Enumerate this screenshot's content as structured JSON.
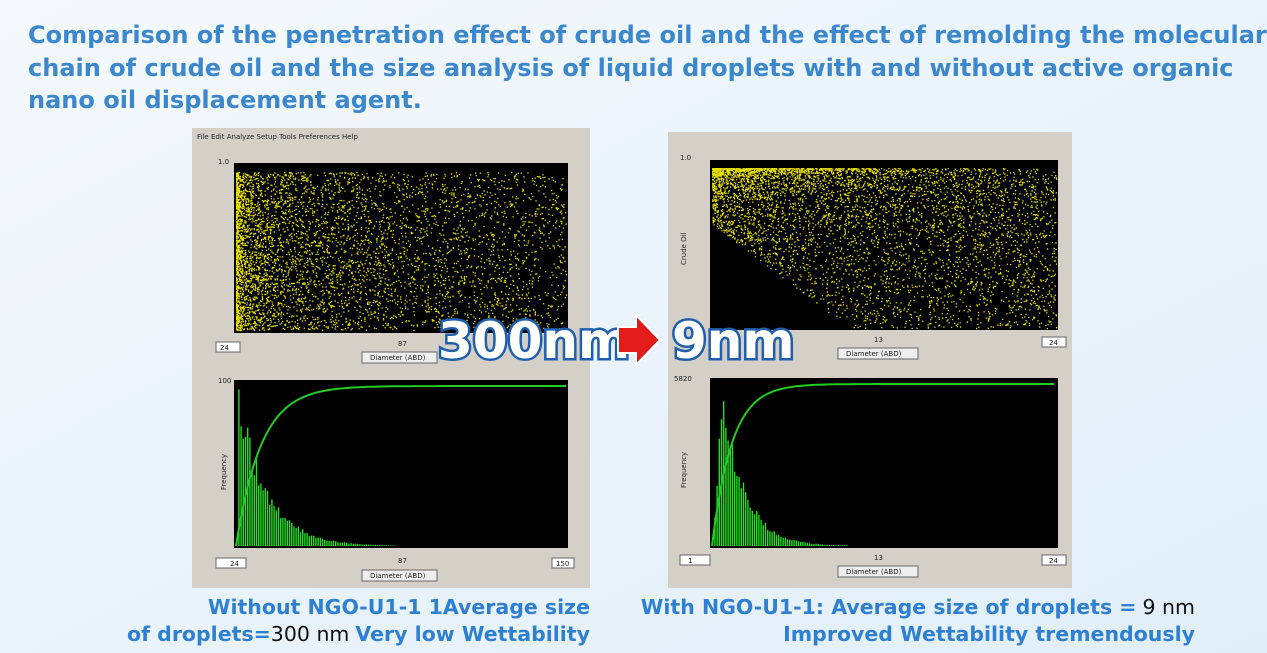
{
  "title": {
    "lines": [
      "Comparison of the penetration effect of crude oil and the effect of remolding the molecular",
      "chain of crude oil and the size analysis of liquid droplets with and without active organic",
      "nano oil displacement agent."
    ]
  },
  "left_panel": {
    "menu": "File  Edit  Analyze  Setup  Tools  Preferences  Help",
    "top_plot": {
      "y_max": "1.0",
      "x_min": "24",
      "x_mid": "87",
      "x_label": "Diameter (ABD)"
    },
    "bottom_plot": {
      "y_max": "100",
      "y_label": "Frequency",
      "x_min": "24",
      "x_mid": "87",
      "x_max": "150",
      "x_label": "Diameter (ABD)"
    }
  },
  "right_panel": {
    "top_plot": {
      "y_max": "1.0",
      "y_label": "Crude Oil",
      "x_mid": "13",
      "x_max": "24",
      "x_label": "Diameter (ABD)"
    },
    "bottom_plot": {
      "y_max": "5820",
      "y_label": "Frequency",
      "x_min": "1",
      "x_mid": "13",
      "x_max": "24",
      "x_label": "Diameter (ABD)"
    }
  },
  "overlay": {
    "before": "300nm",
    "after": "9nm"
  },
  "captions": {
    "left": {
      "line1": "Without NGO-U1-1 1Average size",
      "line2_prefix": "of droplets=",
      "line2_value": "300 nm",
      "line2_suffix": "Very low Wettability"
    },
    "right": {
      "line1_prefix": "With NGO-U1-1: Average size of droplets =",
      "line1_value": "9 nm",
      "line2": "Improved Wettability tremendously"
    }
  }
}
